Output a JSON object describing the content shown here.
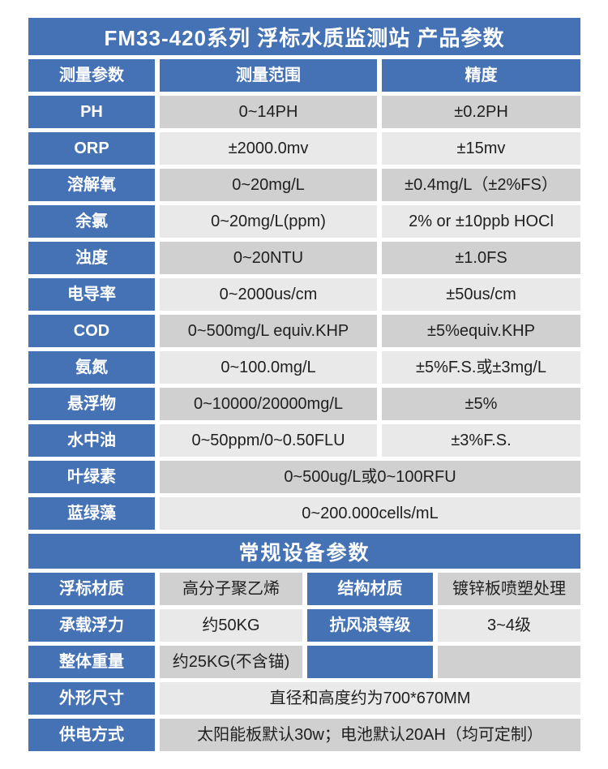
{
  "title": "FM33-420系列 浮标水质监测站 产品参数",
  "colors": {
    "header_blue": "#4472b5",
    "row_dark_gray": "#d0d0d0",
    "row_light_gray": "#e9e9e9",
    "text": "#1f1f1f"
  },
  "spec": {
    "headers": {
      "param": "测量参数",
      "range": "测量范围",
      "accuracy": "精度"
    },
    "rows": [
      {
        "param": "PH",
        "range": "0~14PH",
        "accuracy": "±0.2PH"
      },
      {
        "param": "ORP",
        "range": "±2000.0mv",
        "accuracy": "±15mv"
      },
      {
        "param": "溶解氧",
        "range": "0~20mg/L",
        "accuracy": "±0.4mg/L（±2%FS）"
      },
      {
        "param": "余氯",
        "range": "0~20mg/L(ppm)",
        "accuracy": "2% or ±10ppb HOCl"
      },
      {
        "param": "浊度",
        "range": "0~20NTU",
        "accuracy": "±1.0FS"
      },
      {
        "param": "电导率",
        "range": "0~2000us/cm",
        "accuracy": "±50us/cm"
      },
      {
        "param": "COD",
        "range": "0~500mg/L equiv.KHP",
        "accuracy": "±5%equiv.KHP"
      },
      {
        "param": "氨氮",
        "range": "0~100.0mg/L",
        "accuracy": "±5%F.S.或±3mg/L"
      },
      {
        "param": "悬浮物",
        "range": "0~10000/20000mg/L",
        "accuracy": "±5%"
      },
      {
        "param": "水中油",
        "range": "0~50ppm/0~0.50FLU",
        "accuracy": "±3%F.S."
      },
      {
        "param": "叶绿素",
        "range": "0~500ug/L或0~100RFU"
      },
      {
        "param": "蓝绿藻",
        "range": "0~200.000cells/mL"
      }
    ]
  },
  "equipment": {
    "section_title": "常规设备参数",
    "rows": [
      {
        "label": "浮标材质",
        "value": "高分子聚乙烯",
        "label2": "结构材质",
        "value2": "镀锌板喷塑处理"
      },
      {
        "label": "承载浮力",
        "value": "约50KG",
        "label2": "抗风浪等级",
        "value2": "3~4级"
      },
      {
        "label": "整体重量",
        "value": "约25KG(不含锚)",
        "label2": "",
        "value2": ""
      },
      {
        "label": "外形尺寸",
        "value": "直径和高度约为700*670MM"
      },
      {
        "label": "供电方式",
        "value": "太阳能板默认30w；电池默认20AH（均可定制）"
      }
    ]
  }
}
